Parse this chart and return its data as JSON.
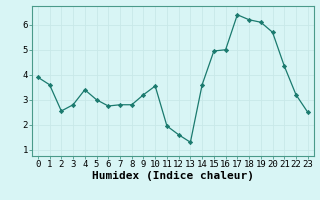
{
  "x": [
    0,
    1,
    2,
    3,
    4,
    5,
    6,
    7,
    8,
    9,
    10,
    11,
    12,
    13,
    14,
    15,
    16,
    17,
    18,
    19,
    20,
    21,
    22,
    23
  ],
  "y": [
    3.9,
    3.6,
    2.55,
    2.8,
    3.4,
    3.0,
    2.75,
    2.8,
    2.8,
    3.2,
    3.55,
    1.95,
    1.6,
    1.3,
    3.6,
    4.95,
    5.0,
    6.4,
    6.2,
    6.1,
    5.7,
    4.35,
    3.2,
    2.5
  ],
  "line_color": "#1a7a6e",
  "marker": "D",
  "marker_size": 2.2,
  "bg_color": "#d8f5f5",
  "grid_color": "#c8e8e8",
  "xlabel": "Humidex (Indice chaleur)",
  "xlabel_fontsize": 8,
  "ylim": [
    0.75,
    6.75
  ],
  "yticks": [
    1,
    2,
    3,
    4,
    5,
    6
  ],
  "xticks": [
    0,
    1,
    2,
    3,
    4,
    5,
    6,
    7,
    8,
    9,
    10,
    11,
    12,
    13,
    14,
    15,
    16,
    17,
    18,
    19,
    20,
    21,
    22,
    23
  ],
  "tick_fontsize": 6.5,
  "spine_color": "#4a9a8a",
  "linewidth": 0.9
}
